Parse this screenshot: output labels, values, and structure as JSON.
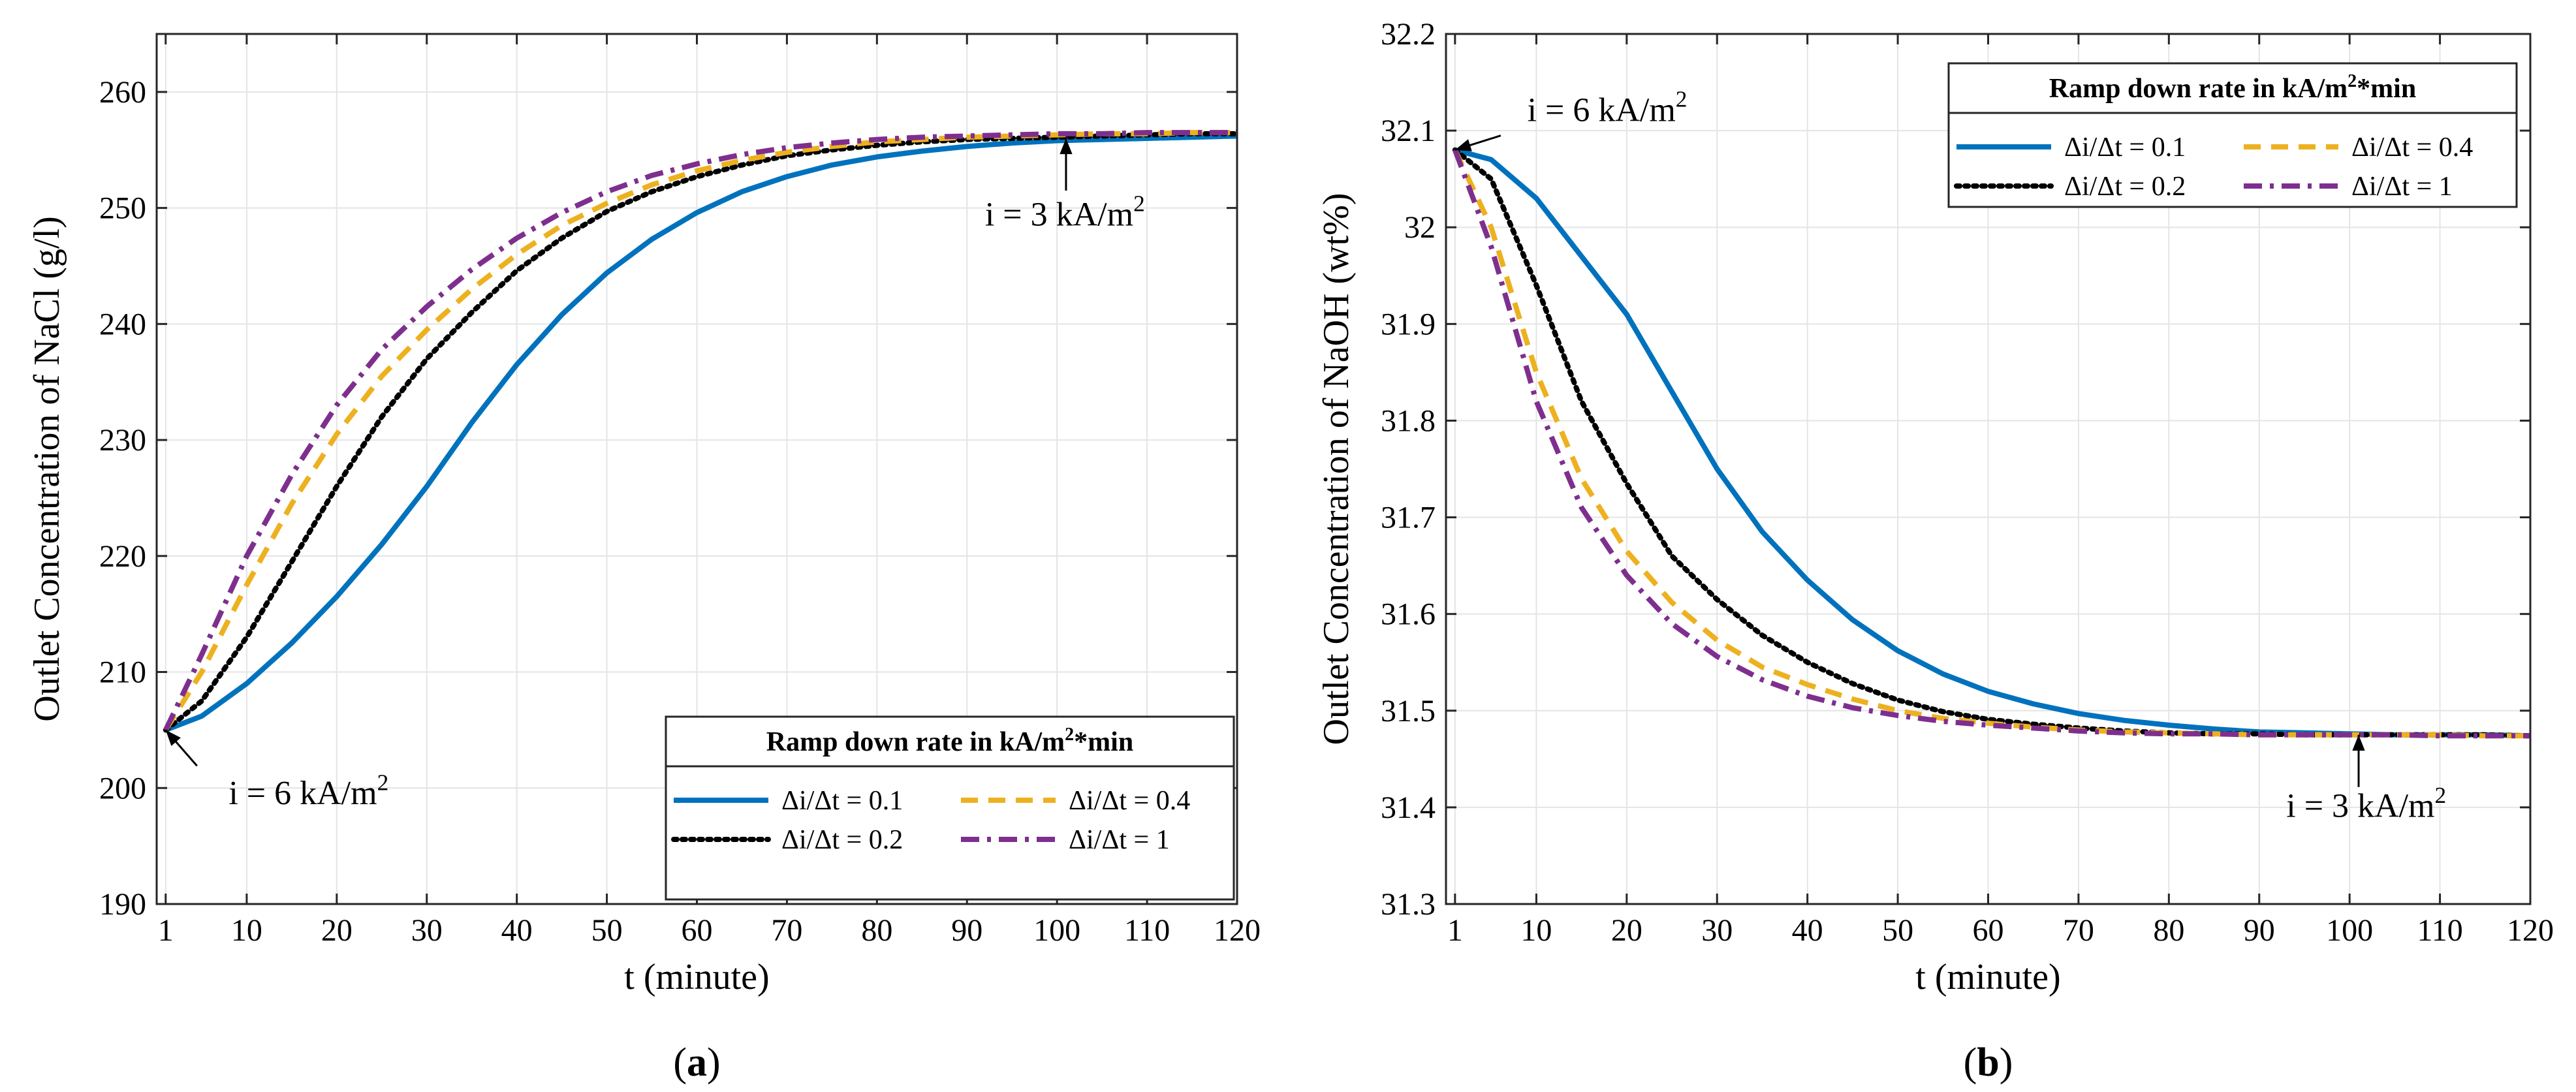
{
  "figure_labels": [
    "(a)",
    "(b)"
  ],
  "legend_title_prefix": "Ramp down rate in kA/m",
  "legend_title_sup": "2",
  "legend_title_suffix": "*min",
  "series_colors": [
    "#0072BD",
    "#000000",
    "#EDB120",
    "#7E2F8E"
  ],
  "chart_data": [
    {
      "type": "line",
      "id": "a",
      "xlabel": "t (minute)",
      "ylabel": "Outlet Concentration of NaCl (g/l)",
      "xlim": [
        0,
        120
      ],
      "ylim": [
        190,
        265
      ],
      "xticks": [
        1,
        10,
        20,
        30,
        40,
        50,
        60,
        70,
        80,
        90,
        100,
        110,
        120
      ],
      "yticks": [
        190,
        200,
        210,
        220,
        230,
        240,
        250,
        260
      ],
      "grid": true,
      "legend_position": "bottom-right",
      "annotations": [
        {
          "text": "i = 6 kA/m",
          "sup": "2",
          "point": [
            1,
            205
          ],
          "text_at": [
            8,
            198.6
          ]
        },
        {
          "text": "i = 3 kA/m",
          "sup": "2",
          "point": [
            101,
            256
          ],
          "text_at": [
            92,
            248.5
          ]
        }
      ],
      "x": [
        1,
        5,
        10,
        15,
        20,
        25,
        30,
        35,
        40,
        45,
        50,
        55,
        60,
        65,
        70,
        75,
        80,
        85,
        90,
        95,
        100,
        105,
        110,
        115,
        120
      ],
      "series": [
        {
          "name": "Δi/Δt = 0.1",
          "style": "solid",
          "values": [
            205,
            206.2,
            209.0,
            212.5,
            216.5,
            221.0,
            226.0,
            231.5,
            236.5,
            240.8,
            244.4,
            247.3,
            249.6,
            251.4,
            252.7,
            253.7,
            254.4,
            254.9,
            255.3,
            255.6,
            255.8,
            255.9,
            256.0,
            256.1,
            256.2
          ]
        },
        {
          "name": "Δi/Δt = 0.2",
          "style": "dotted",
          "values": [
            205,
            207.5,
            213.0,
            219.5,
            226.0,
            232.0,
            237.0,
            241.0,
            244.6,
            247.4,
            249.7,
            251.4,
            252.7,
            253.7,
            254.5,
            255.0,
            255.4,
            255.7,
            255.9,
            256.0,
            256.1,
            256.2,
            256.3,
            256.4,
            256.4
          ]
        },
        {
          "name": "Δi/Δt = 0.4",
          "style": "dashed",
          "values": [
            205,
            210.0,
            217.5,
            224.5,
            230.5,
            235.5,
            239.5,
            243.0,
            246.0,
            248.5,
            250.4,
            252.0,
            253.2,
            254.1,
            254.8,
            255.3,
            255.7,
            255.9,
            256.1,
            256.2,
            256.3,
            256.4,
            256.4,
            256.5,
            256.5
          ]
        },
        {
          "name": "Δi/Δt = 1",
          "style": "dashdot",
          "values": [
            205,
            211.5,
            220.0,
            227.0,
            233.0,
            237.8,
            241.5,
            244.7,
            247.4,
            249.6,
            251.4,
            252.8,
            253.8,
            254.6,
            255.2,
            255.6,
            255.9,
            256.1,
            256.2,
            256.3,
            256.4,
            256.4,
            256.5,
            256.5,
            256.5
          ]
        }
      ]
    },
    {
      "type": "line",
      "id": "b",
      "xlabel": "t (minute)",
      "ylabel": "Outlet Concentration of NaOH (wt%)",
      "xlim": [
        0,
        120
      ],
      "ylim": [
        31.3,
        32.2
      ],
      "xticks": [
        1,
        10,
        20,
        30,
        40,
        50,
        60,
        70,
        80,
        90,
        100,
        110,
        120
      ],
      "yticks": [
        31.3,
        31.4,
        31.5,
        31.6,
        31.7,
        31.8,
        31.9,
        32,
        32.1,
        32.2
      ],
      "grid": true,
      "legend_position": "top-right",
      "annotations": [
        {
          "text": "i = 6 kA/m",
          "sup": "2",
          "point": [
            1,
            32.08
          ],
          "text_at": [
            9,
            32.11
          ]
        },
        {
          "text": "i = 3 kA/m",
          "sup": "2",
          "point": [
            101,
            31.475
          ],
          "text_at": [
            93,
            31.39
          ]
        }
      ],
      "x": [
        1,
        5,
        10,
        15,
        20,
        25,
        30,
        35,
        40,
        45,
        50,
        55,
        60,
        65,
        70,
        75,
        80,
        85,
        90,
        95,
        100,
        105,
        110,
        115,
        120
      ],
      "series": [
        {
          "name": "Δi/Δt = 0.1",
          "style": "solid",
          "values": [
            32.08,
            32.07,
            32.03,
            31.97,
            31.91,
            31.83,
            31.75,
            31.685,
            31.635,
            31.594,
            31.562,
            31.538,
            31.52,
            31.507,
            31.497,
            31.49,
            31.485,
            31.481,
            31.478,
            31.477,
            31.476,
            31.475,
            31.475,
            31.475,
            31.474
          ]
        },
        {
          "name": "Δi/Δt = 0.2",
          "style": "dotted",
          "values": [
            32.08,
            32.05,
            31.94,
            31.82,
            31.735,
            31.66,
            31.615,
            31.578,
            31.55,
            31.528,
            31.511,
            31.499,
            31.491,
            31.486,
            31.482,
            31.479,
            31.477,
            31.476,
            31.476,
            31.475,
            31.475,
            31.475,
            31.475,
            31.475,
            31.474
          ]
        },
        {
          "name": "Δi/Δt = 0.4",
          "style": "dashed",
          "values": [
            32.08,
            32.0,
            31.85,
            31.74,
            31.665,
            31.612,
            31.573,
            31.545,
            31.527,
            31.512,
            31.5,
            31.492,
            31.487,
            31.483,
            31.48,
            31.478,
            31.477,
            31.476,
            31.475,
            31.475,
            31.475,
            31.475,
            31.475,
            31.474,
            31.474
          ]
        },
        {
          "name": "Δi/Δt = 1",
          "style": "dashdot",
          "values": [
            32.08,
            31.98,
            31.82,
            31.71,
            31.64,
            31.59,
            31.556,
            31.532,
            31.515,
            31.503,
            31.495,
            31.489,
            31.485,
            31.482,
            31.479,
            31.477,
            31.476,
            31.476,
            31.475,
            31.475,
            31.475,
            31.475,
            31.474,
            31.474,
            31.474
          ]
        }
      ]
    }
  ]
}
